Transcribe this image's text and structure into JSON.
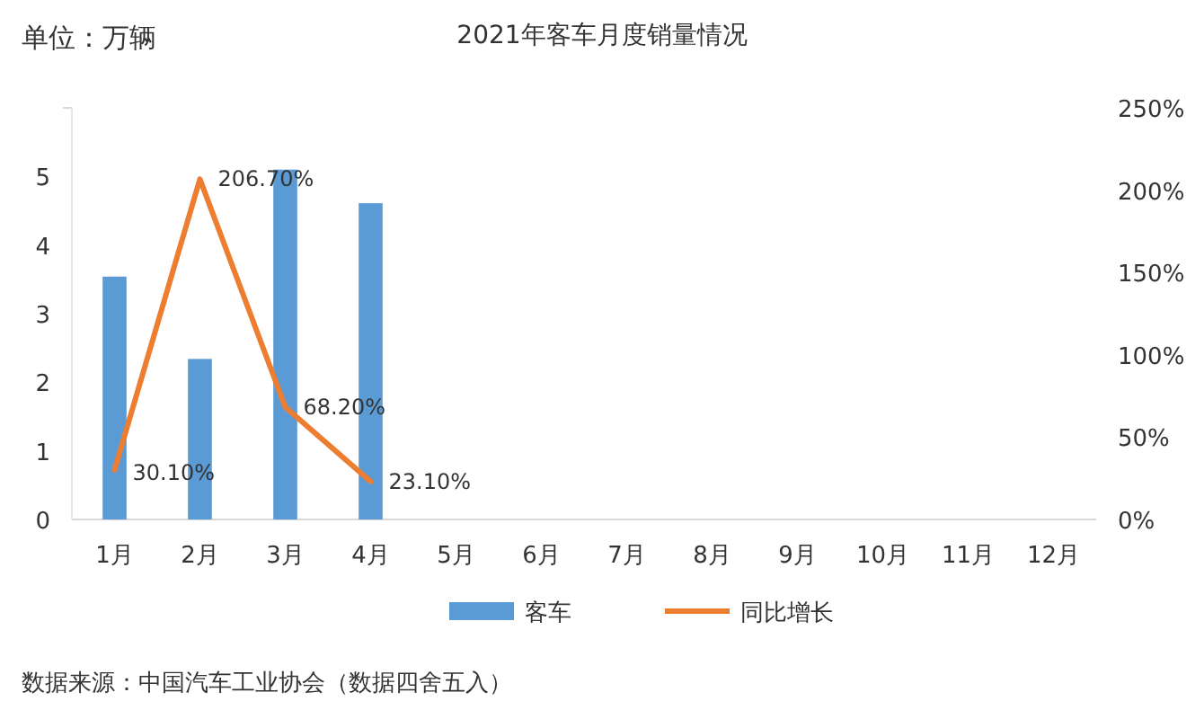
{
  "chart_data": {
    "type": "bar",
    "title": "2021年客车月度销量情况",
    "annotations": [
      "单位：万辆",
      "数据来源：中国汽车工业协会（数据四舍五入）"
    ],
    "categories": [
      "1月",
      "2月",
      "3月",
      "4月",
      "5月",
      "6月",
      "7月",
      "8月",
      "9月",
      "10月",
      "11月",
      "12月"
    ],
    "series": [
      {
        "name": "客车",
        "color": "#5b9bd5",
        "values": [
          3.54,
          2.34,
          5.1,
          4.61,
          null,
          null,
          null,
          null,
          null,
          null,
          null,
          null
        ]
      },
      {
        "name": "同比增长",
        "type": "line",
        "axis": "y2",
        "color": "#ed7d31",
        "values": [
          30.1,
          206.7,
          68.2,
          23.1,
          null,
          null,
          null,
          null,
          null,
          null,
          null,
          null
        ],
        "value_labels": [
          "30.10%",
          "206.70%",
          "68.20%",
          "23.10%",
          null,
          null,
          null,
          null,
          null,
          null,
          null,
          null
        ]
      }
    ],
    "ylim": [
      0,
      6
    ],
    "yticks": [
      0,
      1,
      2,
      3,
      4,
      5,
      {
        "value": 6,
        "label": null
      }
    ],
    "y2lim": [
      0,
      250
    ],
    "y2ticks": [
      {
        "value": 0,
        "label": "0%"
      },
      {
        "value": 50,
        "label": "50%"
      },
      {
        "value": 100,
        "label": "100%"
      },
      {
        "value": 150,
        "label": "150%"
      },
      {
        "value": 200,
        "label": "200%"
      },
      {
        "value": 250,
        "label": "250%"
      }
    ],
    "legend": "bottom",
    "grid": false,
    "marker": "none",
    "line_style": "solid"
  }
}
